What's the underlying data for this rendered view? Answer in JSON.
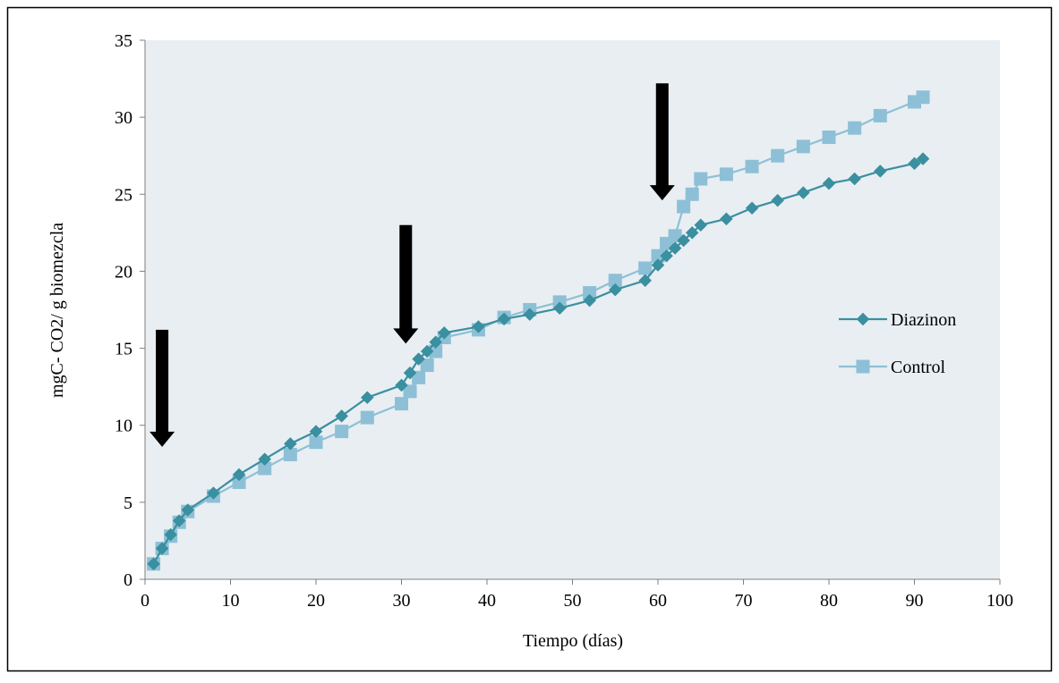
{
  "chart_data": {
    "type": "line",
    "title": "",
    "xlabel": "Tiempo (días)",
    "ylabel": "mgC- CO2/ g biomezcla",
    "xlim": [
      0,
      100
    ],
    "ylim": [
      0,
      35
    ],
    "xticks": [
      0,
      10,
      20,
      30,
      40,
      50,
      60,
      70,
      80,
      90,
      100
    ],
    "yticks": [
      0,
      5,
      10,
      15,
      20,
      25,
      30,
      35
    ],
    "grid": false,
    "legend_position": "right",
    "plot_background": "#E8EEF2",
    "series": [
      {
        "name": "Diazinon",
        "color": "#3A8FA0",
        "marker": "diamond",
        "x": [
          1,
          2,
          3,
          4,
          5,
          8,
          11,
          14,
          17,
          20,
          23,
          26,
          30,
          31,
          32,
          33,
          34,
          35,
          39,
          42,
          45,
          48.5,
          52,
          55,
          58.5,
          60,
          61,
          62,
          63,
          64,
          65,
          68,
          71,
          74,
          77,
          80,
          83,
          86,
          90,
          91
        ],
        "y": [
          1.0,
          2.0,
          2.9,
          3.8,
          4.5,
          5.6,
          6.8,
          7.8,
          8.8,
          9.6,
          10.6,
          11.8,
          12.6,
          13.4,
          14.3,
          14.8,
          15.4,
          16.0,
          16.4,
          16.9,
          17.2,
          17.6,
          18.1,
          18.8,
          19.4,
          20.4,
          21.0,
          21.5,
          22.0,
          22.5,
          23.0,
          23.4,
          24.1,
          24.6,
          25.1,
          25.7,
          26.0,
          26.5,
          27.0,
          27.3
        ]
      },
      {
        "name": "Control",
        "color": "#8DC0D6",
        "marker": "square",
        "x": [
          1,
          2,
          3,
          4,
          5,
          8,
          11,
          14,
          17,
          20,
          23,
          26,
          30,
          31,
          32,
          33,
          34,
          35,
          39,
          42,
          45,
          48.5,
          52,
          55,
          58.5,
          60,
          61,
          62,
          63,
          64,
          65,
          68,
          71,
          74,
          77,
          80,
          83,
          86,
          90,
          91
        ],
        "y": [
          1.0,
          2.0,
          2.8,
          3.7,
          4.4,
          5.4,
          6.3,
          7.2,
          8.1,
          8.9,
          9.6,
          10.5,
          11.4,
          12.2,
          13.1,
          13.9,
          14.8,
          15.7,
          16.2,
          17.0,
          17.5,
          18.0,
          18.6,
          19.4,
          20.2,
          21.0,
          21.8,
          22.3,
          24.2,
          25.0,
          26.0,
          26.3,
          26.8,
          27.5,
          28.1,
          28.7,
          29.3,
          30.1,
          31.0,
          31.3
        ]
      }
    ],
    "arrows": [
      {
        "x": 2,
        "y_top": 16.2,
        "y_tip": 8.6
      },
      {
        "x": 30.5,
        "y_top": 23.0,
        "y_tip": 15.3
      },
      {
        "x": 60.5,
        "y_top": 32.2,
        "y_tip": 24.6
      }
    ]
  }
}
